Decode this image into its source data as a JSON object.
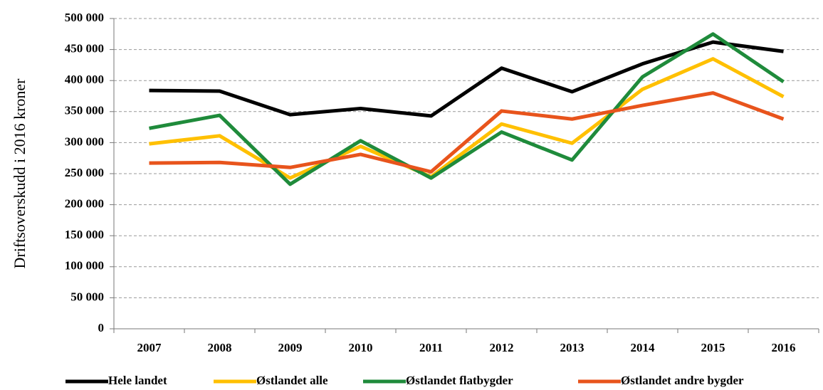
{
  "chart_data": {
    "type": "line",
    "y_label": "Driftsoverskudd i  2016 kroner",
    "categories": [
      "2007",
      "2008",
      "2009",
      "2010",
      "2011",
      "2012",
      "2013",
      "2014",
      "2015",
      "2016"
    ],
    "series": [
      {
        "name": "Hele landet",
        "color": "#000000",
        "values": [
          384000,
          383000,
          345000,
          355000,
          343000,
          420000,
          382000,
          427000,
          462000,
          447000
        ]
      },
      {
        "name": "Østlandet alle",
        "color": "#ffc000",
        "values": [
          298000,
          311000,
          243000,
          294000,
          245000,
          330000,
          299000,
          386000,
          435000,
          374000
        ]
      },
      {
        "name": "Østlandet flatbygder",
        "color": "#1f8b3b",
        "values": [
          323000,
          344000,
          233000,
          303000,
          243000,
          317000,
          272000,
          406000,
          475000,
          398000
        ]
      },
      {
        "name": "Østlandet andre bygder",
        "color": "#e8541c",
        "values": [
          267000,
          268000,
          260000,
          281000,
          253000,
          351000,
          338000,
          360000,
          380000,
          338000
        ]
      }
    ],
    "ylim": [
      0,
      500000
    ],
    "yticks": [
      0,
      {
        "value": 50000,
        "label": "50 000"
      },
      {
        "value": 100000,
        "label": "100 000"
      },
      {
        "value": 150000,
        "label": "150 000"
      },
      {
        "value": 200000,
        "label": "200 000"
      },
      {
        "value": 250000,
        "label": "250 000"
      },
      {
        "value": 300000,
        "label": "300 000"
      },
      {
        "value": 350000,
        "label": "350 000"
      },
      {
        "value": 400000,
        "label": "400 000"
      },
      {
        "value": 450000,
        "label": "450 000"
      },
      {
        "value": 500000,
        "label": "500 000"
      }
    ],
    "grid": true,
    "legend": "bottom"
  }
}
